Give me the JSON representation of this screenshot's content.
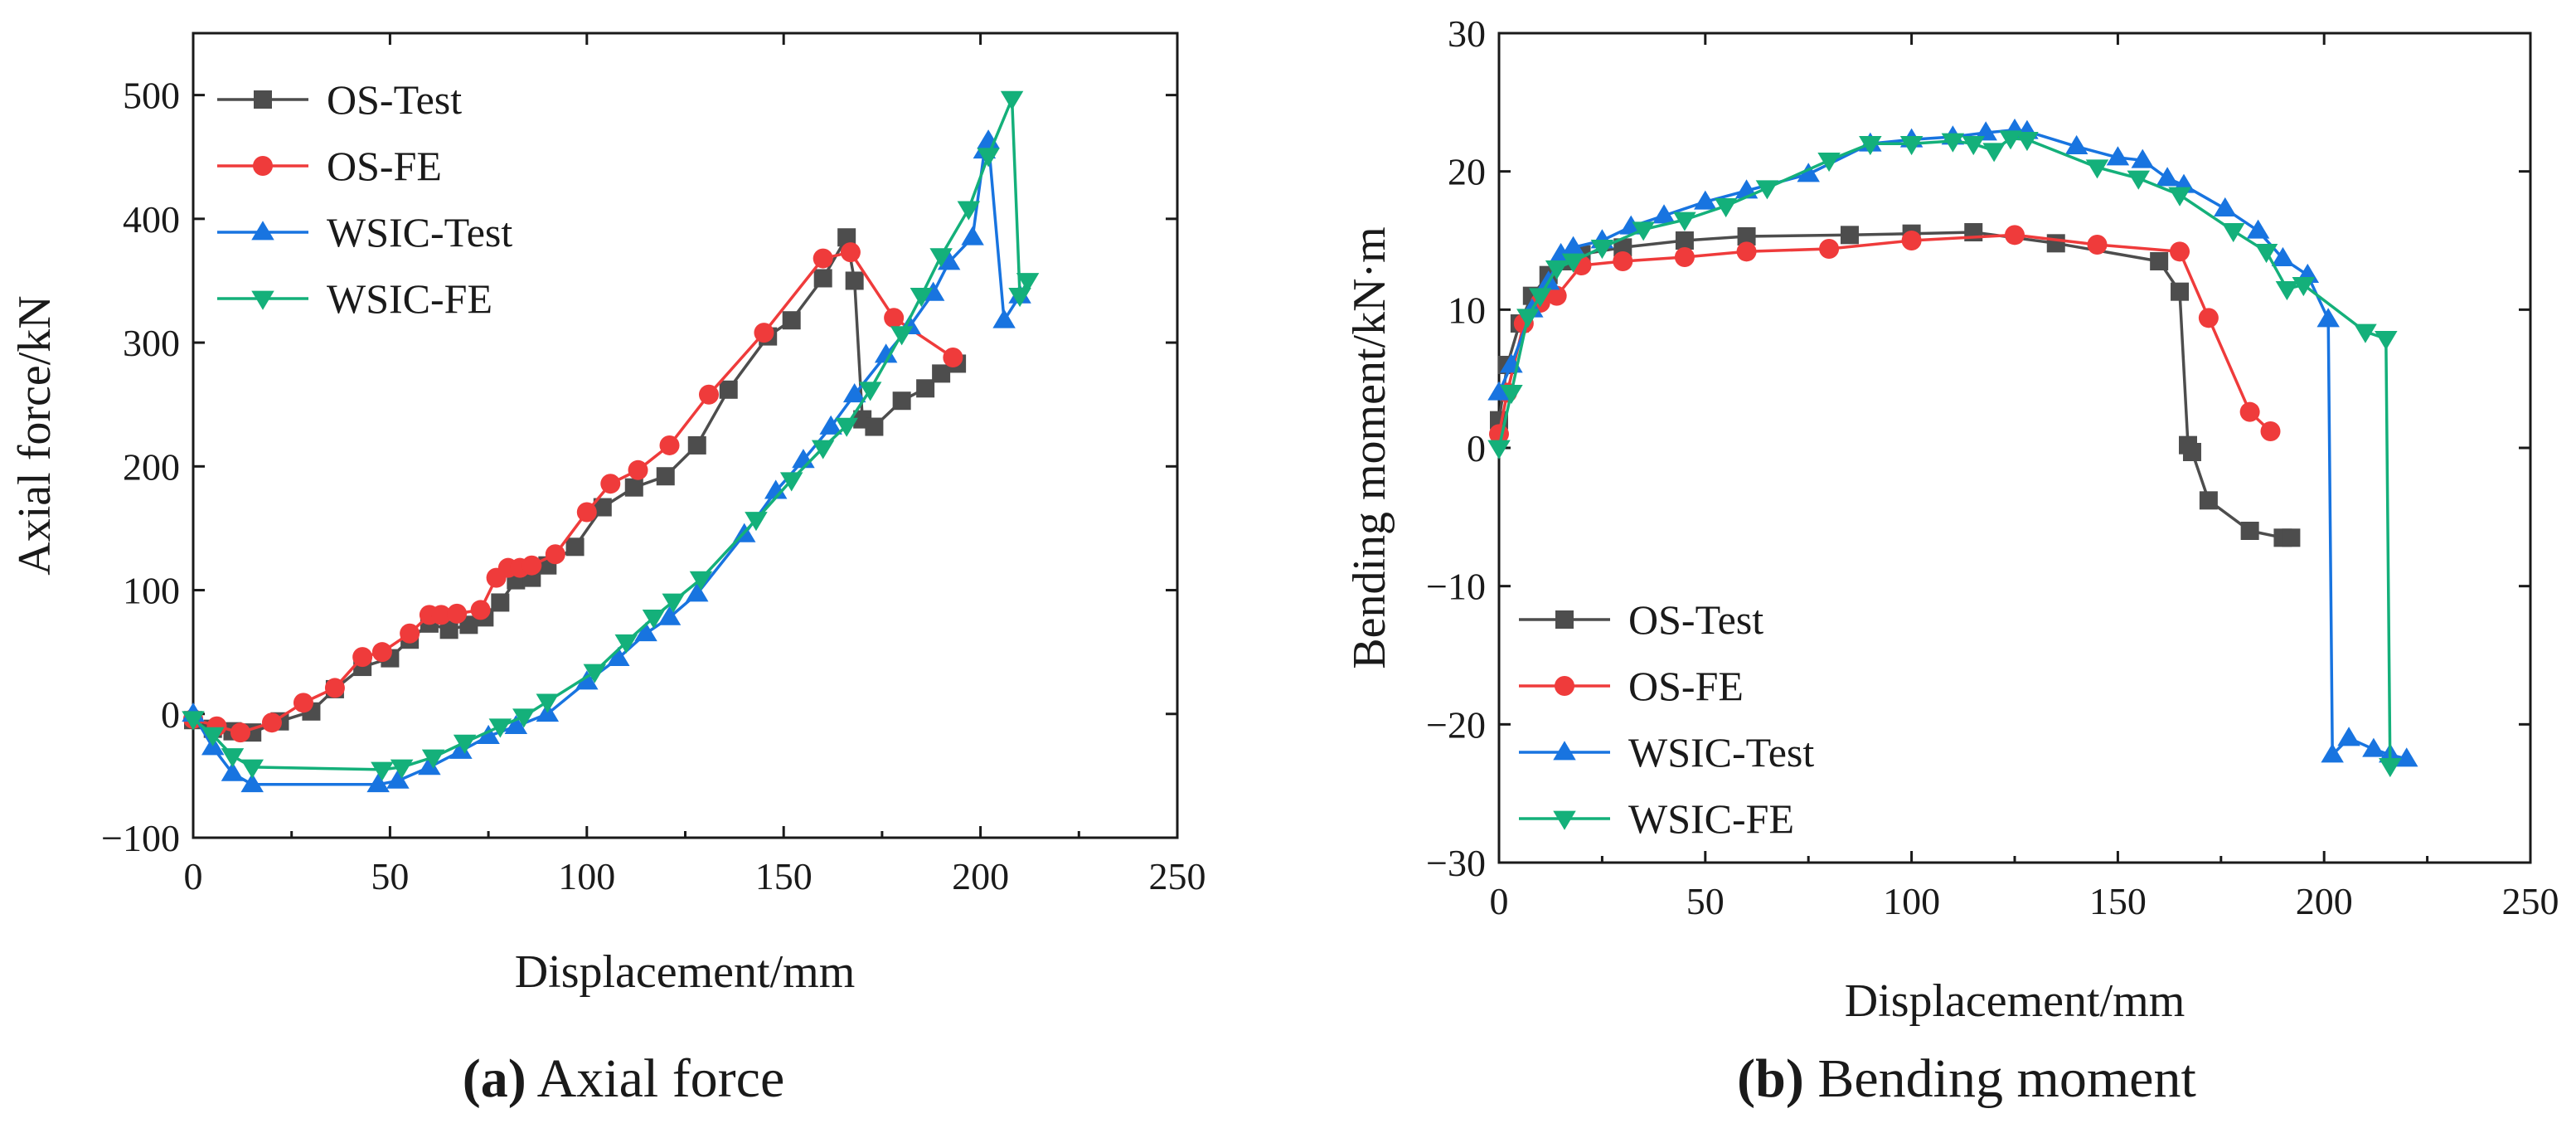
{
  "chart_data": [
    {
      "type": "line",
      "caption_label": "(a)",
      "caption_text": "Axial force",
      "xlabel": "Displacement/mm",
      "ylabel": "Axial force/kN",
      "xlim": [
        0,
        250
      ],
      "ylim": [
        -100,
        550
      ],
      "xticks": [
        0,
        50,
        100,
        150,
        200,
        250
      ],
      "yticks": [
        -100,
        0,
        100,
        200,
        300,
        400,
        500
      ],
      "xtick_labels": [
        "0",
        "50",
        "100",
        "150",
        "200",
        "250"
      ],
      "ytick_labels": [
        "−100",
        "0",
        "100",
        "200",
        "300",
        "400",
        "500"
      ],
      "legend_position": "top-left",
      "series": [
        {
          "name": "OS-Test",
          "color": "#4d4d4d",
          "marker": "square",
          "x": [
            0,
            5,
            10,
            15,
            22,
            30,
            36,
            43,
            50,
            55,
            60,
            65,
            70,
            74,
            78,
            82,
            86,
            90,
            97,
            104,
            112,
            120,
            128,
            136,
            146,
            152,
            160,
            166,
            168,
            170,
            173,
            180,
            186,
            190,
            194
          ],
          "y": [
            -5,
            -12,
            -14,
            -15,
            -6,
            2,
            20,
            38,
            45,
            60,
            73,
            68,
            72,
            78,
            90,
            108,
            110,
            120,
            135,
            167,
            183,
            192,
            217,
            262,
            305,
            318,
            352,
            385,
            350,
            238,
            232,
            253,
            263,
            275,
            283
          ]
        },
        {
          "name": "OS-FE",
          "color": "#ef3b3b",
          "marker": "circle",
          "x": [
            0,
            6,
            12,
            20,
            28,
            36,
            43,
            48,
            55,
            60,
            63,
            67,
            73,
            77,
            80,
            83,
            86,
            92,
            100,
            106,
            113,
            121,
            131,
            145,
            160,
            167,
            178,
            193
          ],
          "y": [
            -4,
            -10,
            -15,
            -7,
            9,
            21,
            46,
            50,
            65,
            80,
            80,
            81,
            84,
            110,
            118,
            118,
            120,
            129,
            163,
            186,
            197,
            217,
            258,
            308,
            368,
            373,
            320,
            288
          ]
        },
        {
          "name": "WSIC-Test",
          "color": "#1874e0",
          "marker": "triangle-up",
          "x": [
            0,
            5,
            10,
            15,
            47,
            52,
            60,
            68,
            75,
            82,
            90,
            100,
            108,
            115,
            121,
            128,
            140,
            148,
            155,
            162,
            168,
            176,
            182,
            188,
            192,
            198,
            201,
            202,
            206,
            210
          ],
          "y": [
            0,
            -27,
            -48,
            -57,
            -57,
            -54,
            -43,
            -30,
            -18,
            -10,
            0,
            26,
            45,
            65,
            78,
            97,
            145,
            180,
            205,
            232,
            258,
            290,
            313,
            340,
            365,
            385,
            455,
            463,
            318,
            338
          ]
        },
        {
          "name": "WSIC-FE",
          "color": "#14b07a",
          "marker": "triangle-down",
          "x": [
            0,
            5,
            10,
            15,
            48,
            53,
            61,
            69,
            78,
            84,
            90,
            102,
            110,
            117,
            122,
            129,
            143,
            152,
            160,
            166,
            172,
            180,
            185,
            190,
            197,
            202,
            208,
            210,
            212
          ],
          "y": [
            -4,
            -17,
            -34,
            -43,
            -45,
            -43,
            -35,
            -23,
            -10,
            -2,
            10,
            34,
            58,
            78,
            91,
            109,
            157,
            189,
            215,
            233,
            262,
            307,
            338,
            370,
            408,
            451,
            497,
            338,
            350
          ]
        }
      ]
    },
    {
      "type": "line",
      "caption_label": "(b)",
      "caption_text": "Bending moment",
      "xlabel": "Displacement/mm",
      "ylabel": "Bending moment/kN·m",
      "xlim": [
        0,
        250
      ],
      "ylim": [
        -30,
        30
      ],
      "xticks": [
        0,
        50,
        100,
        150,
        200,
        250
      ],
      "yticks": [
        -30,
        -20,
        -10,
        0,
        10,
        20,
        30
      ],
      "xtick_labels": [
        "0",
        "50",
        "100",
        "150",
        "200",
        "250"
      ],
      "ytick_labels": [
        "−30",
        "−20",
        "−10",
        "0",
        "10",
        "20",
        "30"
      ],
      "legend_position": "bottom-left",
      "series": [
        {
          "name": "OS-Test",
          "color": "#4d4d4d",
          "marker": "square",
          "x": [
            0,
            2,
            5,
            8,
            12,
            16,
            20,
            30,
            45,
            60,
            85,
            100,
            115,
            135,
            160,
            165,
            167,
            168,
            172,
            182,
            190,
            192
          ],
          "y": [
            2,
            6,
            9,
            11,
            12.5,
            13.5,
            14,
            14.5,
            15,
            15.3,
            15.4,
            15.5,
            15.6,
            14.8,
            13.5,
            11.3,
            0.2,
            -0.3,
            -3.8,
            -6,
            -6.5,
            -6.5
          ]
        },
        {
          "name": "OS-FE",
          "color": "#ef3b3b",
          "marker": "circle",
          "x": [
            0,
            2,
            6,
            10,
            14,
            20,
            30,
            45,
            60,
            80,
            100,
            125,
            145,
            165,
            172,
            182,
            187
          ],
          "y": [
            1,
            4,
            9,
            10.5,
            11,
            13.2,
            13.5,
            13.8,
            14.2,
            14.4,
            15,
            15.4,
            14.7,
            14.2,
            9.4,
            2.6,
            1.2
          ]
        },
        {
          "name": "WSIC-Test",
          "color": "#1874e0",
          "marker": "triangle-up",
          "x": [
            0,
            3,
            8,
            12,
            15,
            18,
            25,
            32,
            40,
            50,
            60,
            75,
            90,
            100,
            110,
            118,
            125,
            128,
            140,
            150,
            156,
            162,
            166,
            176,
            184,
            190,
            196,
            201,
            202,
            206,
            212,
            216,
            220
          ],
          "y": [
            4,
            6,
            10,
            12,
            14,
            14.5,
            15,
            16,
            16.8,
            17.8,
            18.6,
            19.8,
            22,
            22.3,
            22.5,
            22.8,
            23,
            22.9,
            21.8,
            21,
            20.8,
            19.5,
            19,
            17.3,
            15.7,
            13.7,
            12.5,
            9.3,
            -22.2,
            -21,
            -21.8,
            -22.2,
            -22.5
          ]
        },
        {
          "name": "WSIC-FE",
          "color": "#14b07a",
          "marker": "triangle-down",
          "x": [
            0,
            3,
            7,
            10,
            14,
            18,
            25,
            35,
            45,
            55,
            65,
            80,
            90,
            100,
            110,
            115,
            120,
            124,
            128,
            145,
            155,
            165,
            178,
            186,
            191,
            195,
            210,
            215,
            216
          ],
          "y": [
            0,
            4,
            9.5,
            11,
            13,
            13.5,
            14.5,
            15.8,
            16.5,
            17.5,
            18.8,
            20.8,
            22,
            22,
            22.2,
            22,
            21.5,
            22.4,
            22.3,
            20.3,
            19.5,
            18.3,
            15.7,
            14.2,
            11.5,
            11.8,
            8.4,
            7.9,
            -23
          ]
        }
      ]
    }
  ]
}
